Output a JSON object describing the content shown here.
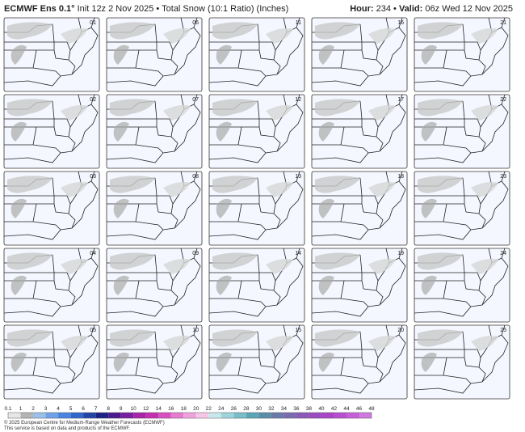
{
  "header": {
    "model": "ECMWF Ens 0.1°",
    "subtitle": "Init 12z 2 Nov 2025 • Total Snow (10:1 Ratio) (Inches)",
    "hour_label": "Hour:",
    "hour": "234 •",
    "valid_label": "Valid:",
    "valid": "06z Wed 12 Nov 2025"
  },
  "panels": [
    "01",
    "02",
    "03",
    "04",
    "05",
    "06",
    "07",
    "08",
    "09",
    "10",
    "11",
    "12",
    "13",
    "14",
    "15",
    "16",
    "17",
    "18",
    "19",
    "20",
    "21",
    "22",
    "23",
    "24",
    "25"
  ],
  "colorbar": {
    "ticks": [
      0.1,
      1,
      2,
      3,
      4,
      5,
      6,
      7,
      8,
      9,
      10,
      12,
      14,
      16,
      18,
      20,
      22,
      24,
      26,
      28,
      30,
      32,
      34,
      36,
      38,
      40,
      42,
      44,
      46,
      48
    ],
    "colors": [
      "#e6e6e6",
      "#b4b4b4",
      "#9bbfe8",
      "#6fa2e6",
      "#4a84e0",
      "#3366cc",
      "#2544a8",
      "#1c2387",
      "#4b1a8e",
      "#7a1fa0",
      "#a726a8",
      "#c42fb0",
      "#d94fc0",
      "#e67bd0",
      "#efa3dc",
      "#f6c6e8",
      "#c9e8ec",
      "#9fd4dc",
      "#79bfc9",
      "#5aa6b4",
      "#5a8ea8",
      "#6a7aa8",
      "#7a6ab0",
      "#8a5ab8",
      "#9a4cc0",
      "#aa44c8",
      "#b84fd0",
      "#c460d8",
      "#cf78e0"
    ]
  },
  "footer": {
    "line1": "© 2025 European Centre for Medium-Range Weather Forecasts (ECMWF)",
    "line2": "This service is based on data and products of the ECMWF."
  }
}
